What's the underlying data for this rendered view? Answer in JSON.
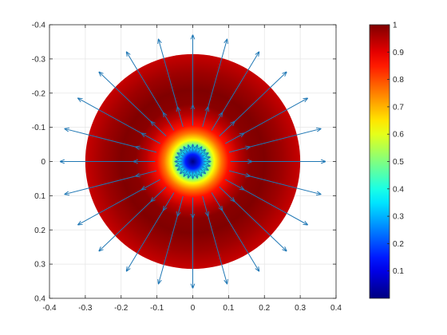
{
  "chart_data": {
    "type": "heatmap",
    "title": "",
    "xlabel": "",
    "ylabel": "",
    "xlim": [
      -0.4,
      0.4
    ],
    "ylim": [
      -0.4,
      0.4
    ],
    "y_direction": "reversed",
    "grid": true,
    "xticks": [
      {
        "value": -0.4,
        "label": "-0.4"
      },
      {
        "value": -0.3,
        "label": "-0.3"
      },
      {
        "value": -0.2,
        "label": "-0.2"
      },
      {
        "value": -0.1,
        "label": "-0.1"
      },
      {
        "value": 0,
        "label": "0"
      },
      {
        "value": 0.1,
        "label": "0.1"
      },
      {
        "value": 0.2,
        "label": "0.2"
      },
      {
        "value": 0.3,
        "label": "0.3"
      },
      {
        "value": 0.4,
        "label": "0.4"
      }
    ],
    "yticks": [
      {
        "value": -0.4,
        "label": "-0.4"
      },
      {
        "value": -0.3,
        "label": "-0.3"
      },
      {
        "value": -0.2,
        "label": "-0.2"
      },
      {
        "value": -0.1,
        "label": "-0.1"
      },
      {
        "value": 0,
        "label": "0"
      },
      {
        "value": 0.1,
        "label": "0.1"
      },
      {
        "value": 0.2,
        "label": "0.2"
      },
      {
        "value": 0.3,
        "label": "0.3"
      },
      {
        "value": 0.4,
        "label": "0.4"
      }
    ],
    "field": {
      "shape": "disk",
      "center": [
        0,
        0
      ],
      "radius": 0.3,
      "value_profile": [
        {
          "r": 0.0,
          "v": 0.0
        },
        {
          "r": 0.02,
          "v": 0.15
        },
        {
          "r": 0.04,
          "v": 0.4
        },
        {
          "r": 0.06,
          "v": 0.62
        },
        {
          "r": 0.08,
          "v": 0.76
        },
        {
          "r": 0.1,
          "v": 0.86
        },
        {
          "r": 0.13,
          "v": 0.94
        },
        {
          "r": 0.16,
          "v": 0.99
        },
        {
          "r": 0.2,
          "v": 1.0
        },
        {
          "r": 0.25,
          "v": 0.97
        },
        {
          "r": 0.3,
          "v": 0.93
        }
      ]
    },
    "quiver": {
      "color": "#1f77b4",
      "direction": "radially-outward",
      "num_angles": 24,
      "radii": [
        0.03,
        0.105,
        0.16
      ],
      "lengths": [
        0.02,
        0.06,
        0.21
      ]
    },
    "colorbar": {
      "colormap": "jet",
      "limits": [
        0,
        1
      ],
      "ticks": [
        {
          "value": 0.1,
          "label": "0.1"
        },
        {
          "value": 0.2,
          "label": "0.2"
        },
        {
          "value": 0.3,
          "label": "0.3"
        },
        {
          "value": 0.4,
          "label": "0.4"
        },
        {
          "value": 0.5,
          "label": "0.5"
        },
        {
          "value": 0.6,
          "label": "0.6"
        },
        {
          "value": 0.7,
          "label": "0.7"
        },
        {
          "value": 0.8,
          "label": "0.8"
        },
        {
          "value": 0.9,
          "label": "0.9"
        },
        {
          "value": 1,
          "label": "1"
        }
      ]
    }
  }
}
